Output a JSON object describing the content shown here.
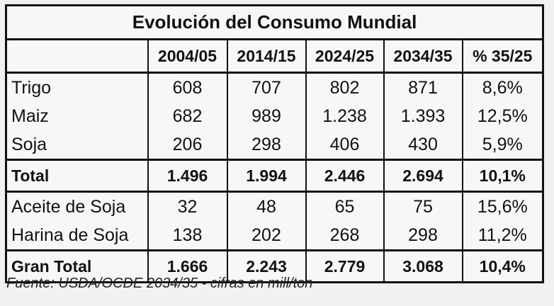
{
  "table": {
    "title": "Evolución del Consumo Mundial",
    "headers": [
      "",
      "2004/05",
      "2014/15",
      "2024/25",
      "2034/35",
      "% 35/25"
    ],
    "group1": [
      {
        "label": "Trigo",
        "values": [
          "608",
          "707",
          "802",
          "871",
          "8,6%"
        ]
      },
      {
        "label": "Maiz",
        "values": [
          "682",
          "989",
          "1.238",
          "1.393",
          "12,5%"
        ]
      },
      {
        "label": "Soja",
        "values": [
          "206",
          "298",
          "406",
          "430",
          "5,9%"
        ]
      }
    ],
    "total": {
      "label": "Total",
      "values": [
        "1.496",
        "1.994",
        "2.446",
        "2.694",
        "10,1%"
      ]
    },
    "group2": [
      {
        "label": "Aceite de Soja",
        "values": [
          "32",
          "48",
          "65",
          "75",
          "15,6%"
        ]
      },
      {
        "label": "Harina de Soja",
        "values": [
          "138",
          "202",
          "268",
          "298",
          "11,2%"
        ]
      }
    ],
    "grand_total": {
      "label": "Gran Total",
      "values": [
        "1.666",
        "2.243",
        "2.779",
        "3.068",
        "10,4%"
      ]
    }
  },
  "source": "Fuente: USDA/OCDE 2034/35 - cifras en mill/ton"
}
